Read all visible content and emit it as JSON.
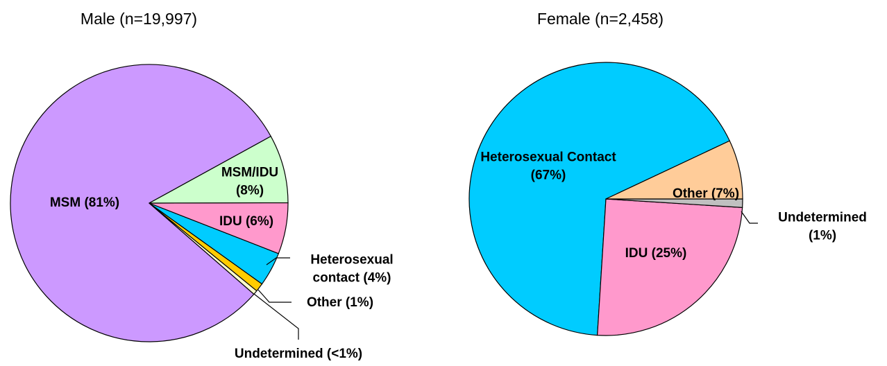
{
  "chart_data": [
    {
      "type": "pie",
      "title": "Male (n=19,997)",
      "categories": [
        "MSM/IDU (8%)",
        "IDU (6%)",
        "Heterosexual contact  (4%)",
        "Other (1%)",
        "Undetermined (<1%)",
        "MSM (81%)"
      ],
      "values": [
        8,
        6,
        4,
        1,
        0.5,
        81
      ],
      "colors": [
        "#ccffcc",
        "#ff99cc",
        "#00ccff",
        "#ffcc00",
        "#ffffcc",
        "#cc99ff"
      ]
    },
    {
      "type": "pie",
      "title": "Female (n=2,458)",
      "categories": [
        "Other (7%)",
        "Undetermined (1%)",
        "IDU (25%)",
        "Heterosexual Contact (67%)"
      ],
      "values": [
        7,
        1,
        25,
        67
      ],
      "colors": [
        "#ffcc99",
        "#c0c0c0",
        "#ff99cc",
        "#00ccff"
      ]
    }
  ]
}
